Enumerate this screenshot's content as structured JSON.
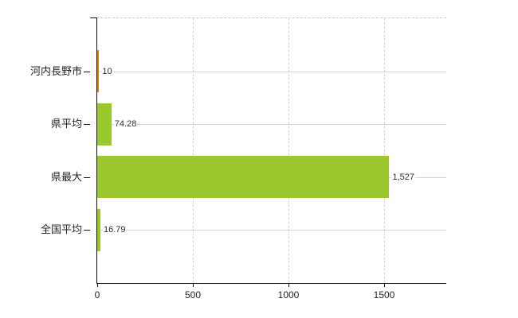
{
  "chart_data": {
    "type": "bar",
    "orientation": "horizontal",
    "title": "",
    "xlabel": "",
    "ylabel": "",
    "legend": "none",
    "categories": [
      "河内長野市",
      "県平均",
      "県最大",
      "全国平均"
    ],
    "values": [
      10,
      74.28,
      1527,
      16.79
    ],
    "value_labels": [
      "10",
      "74.28",
      "1,527",
      "16.79"
    ],
    "bar_colors": [
      "#e2761b",
      "#9bc82f",
      "#9bc82f",
      "#9bc82f"
    ],
    "x_ticks": [
      0,
      500,
      1000,
      1500
    ],
    "x_tick_labels": [
      "0",
      "500",
      "1000",
      "1500"
    ],
    "xlim": [
      0,
      1825
    ],
    "grid": {
      "vertical_value_lines": "dashed",
      "horizontal_category_lines": "solid",
      "top_border": "dashed"
    },
    "colors": {
      "highlight_bar": "#e2761b",
      "default_bar": "#9bc82f",
      "axis": "#111111",
      "vertical_gridline": "#d3d3dc",
      "horizontal_gridline": "#cbd5ca",
      "text": "#222222",
      "background": "#ffffff"
    }
  }
}
